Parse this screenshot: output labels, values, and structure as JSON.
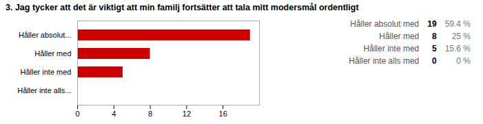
{
  "chart_data": {
    "type": "bar",
    "orientation": "horizontal",
    "title": "3. Jag tycker att det är viktigt att min familj fortsätter att tala mitt modersmål ordentligt",
    "categories": [
      "Håller absolut...",
      "Håller med",
      "Håller inte med",
      "Håller inte alls..."
    ],
    "values": [
      19,
      8,
      5,
      0
    ],
    "color": "#cc0000",
    "xlim": [
      0,
      20
    ],
    "xticks": [
      0,
      4,
      8,
      12,
      16
    ],
    "grid": false,
    "annotations": {
      "labels": [
        "Håller absolut med",
        "Håller med",
        "Håller inte med",
        "Håller inte alls med"
      ],
      "counts": [
        19,
        8,
        5,
        0
      ],
      "percentages": [
        59.4,
        25,
        15.6,
        0
      ],
      "percentage_labels": [
        "59.4 %",
        "25 %",
        "15.6 %",
        "0 %"
      ]
    }
  }
}
